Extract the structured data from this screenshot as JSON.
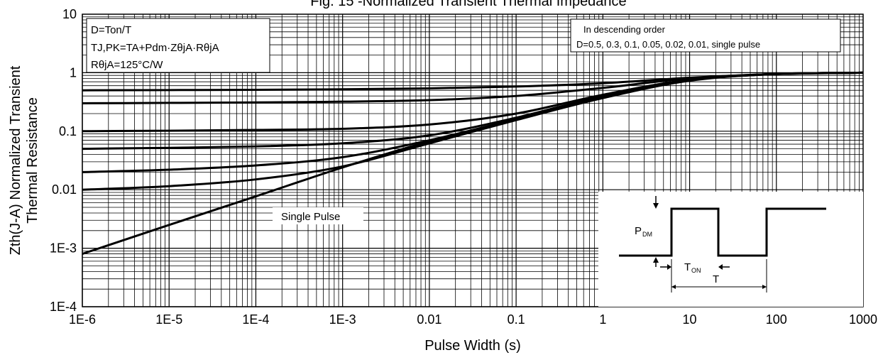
{
  "chart_data": {
    "type": "line",
    "title": "Fig. 15 -Normalized Transient Thermal Impedance",
    "xlabel": "Pulse Width (s)",
    "ylabel_line1": "Zth(J-A) Normalized Transient",
    "ylabel_line2": "Thermal Resistance",
    "x_scale": "log",
    "y_scale": "log",
    "xlim": [
      1e-06,
      1000
    ],
    "ylim": [
      0.0001,
      10
    ],
    "grid": true,
    "x_tick_labels": [
      "1E-6",
      "1E-5",
      "1E-4",
      "1E-3",
      "0.01",
      "0.1",
      "1",
      "10",
      "100",
      "1000"
    ],
    "y_tick_labels": [
      "1E-4",
      "1E-3",
      "0.01",
      "0.1",
      "1",
      "10"
    ],
    "series": [
      {
        "name": "D=0.5",
        "x": [
          1e-06,
          1e-05,
          0.0001,
          0.001,
          0.01,
          0.1,
          1,
          10,
          100,
          1000
        ],
        "y": [
          0.5,
          0.505,
          0.51,
          0.52,
          0.54,
          0.58,
          0.66,
          0.82,
          0.95,
          1.0
        ]
      },
      {
        "name": "D=0.3",
        "x": [
          1e-06,
          1e-05,
          0.0001,
          0.001,
          0.01,
          0.1,
          1,
          10,
          100,
          1000
        ],
        "y": [
          0.3,
          0.305,
          0.31,
          0.32,
          0.34,
          0.4,
          0.55,
          0.8,
          0.95,
          1.0
        ]
      },
      {
        "name": "D=0.1",
        "x": [
          1e-06,
          1e-05,
          0.0001,
          0.001,
          0.01,
          0.1,
          1,
          10,
          100,
          1000
        ],
        "y": [
          0.1,
          0.102,
          0.105,
          0.11,
          0.13,
          0.2,
          0.42,
          0.76,
          0.95,
          1.0
        ]
      },
      {
        "name": "D=0.05",
        "x": [
          1e-06,
          1e-05,
          0.0001,
          0.001,
          0.01,
          0.1,
          1,
          10,
          100,
          1000
        ],
        "y": [
          0.05,
          0.052,
          0.055,
          0.062,
          0.085,
          0.17,
          0.4,
          0.75,
          0.95,
          1.0
        ]
      },
      {
        "name": "D=0.02",
        "x": [
          1e-06,
          1e-05,
          0.0001,
          0.001,
          0.01,
          0.1,
          1,
          10,
          100,
          1000
        ],
        "y": [
          0.02,
          0.022,
          0.026,
          0.036,
          0.07,
          0.16,
          0.38,
          0.74,
          0.95,
          1.0
        ]
      },
      {
        "name": "D=0.01",
        "x": [
          1e-06,
          1e-05,
          0.0001,
          0.001,
          0.01,
          0.1,
          1,
          10,
          100,
          1000
        ],
        "y": [
          0.01,
          0.0115,
          0.015,
          0.025,
          0.062,
          0.155,
          0.37,
          0.74,
          0.95,
          1.0
        ]
      },
      {
        "name": "single pulse",
        "x": [
          1e-06,
          1e-05,
          0.0001,
          0.001,
          0.01,
          0.1,
          1,
          10,
          100,
          1000
        ],
        "y": [
          0.0008,
          0.0025,
          0.0077,
          0.024,
          0.067,
          0.16,
          0.37,
          0.73,
          0.95,
          1.0
        ]
      }
    ],
    "annotations": {
      "box_left_lines": [
        "D=Ton/T",
        "TJ,PK=TA+Pdm·ZθjA·RθjA",
        "RθjA=125°C/W"
      ],
      "box_right_lines": [
        "In descending order",
        "D=0.5, 0.3, 0.1, 0.05, 0.02, 0.01, single pulse"
      ],
      "single_pulse_label": "Single Pulse",
      "inset_pdm_label": "P",
      "inset_pdm_sub": "DM",
      "inset_ton_label": "T",
      "inset_ton_sub": "ON",
      "inset_t_label": "T"
    }
  }
}
